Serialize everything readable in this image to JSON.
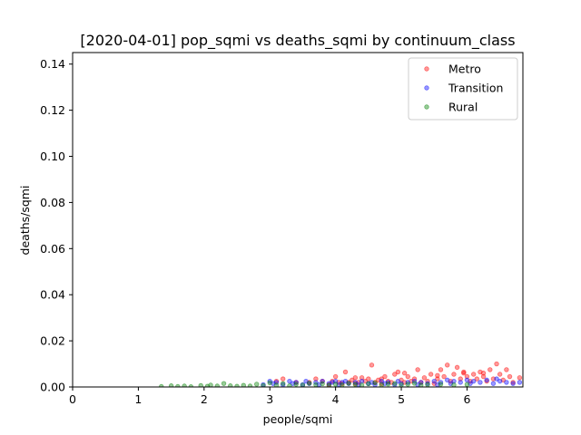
{
  "chart_data": {
    "type": "scatter",
    "title": "[2020-04-01] pop_sqmi vs deaths_sqmi by continuum_class",
    "xlabel": "people/sqmi",
    "ylabel": "deaths/sqmi",
    "xlim": [
      0,
      6.85
    ],
    "ylim": [
      0,
      0.145
    ],
    "xticks": [
      "0",
      "1",
      "2",
      "3",
      "4",
      "5",
      "6"
    ],
    "yticks": [
      "0.00",
      "0.02",
      "0.04",
      "0.06",
      "0.08",
      "0.10",
      "0.12",
      "0.14"
    ],
    "grid": false,
    "legend_position": "top-right",
    "series": [
      {
        "name": "Metro",
        "color": "#ff0000",
        "points": [
          [
            3.1,
            0.0025
          ],
          [
            3.2,
            0.0035
          ],
          [
            3.4,
            0.002
          ],
          [
            3.6,
            0.002
          ],
          [
            3.7,
            0.0035
          ],
          [
            3.8,
            0.0025
          ],
          [
            3.9,
            0.001
          ],
          [
            4.0,
            0.0045
          ],
          [
            4.05,
            0.002
          ],
          [
            4.1,
            0.0015
          ],
          [
            4.15,
            0.0065
          ],
          [
            4.2,
            0.002
          ],
          [
            4.25,
            0.003
          ],
          [
            4.3,
            0.0015
          ],
          [
            4.35,
            0.002
          ],
          [
            4.4,
            0.004
          ],
          [
            4.45,
            0.0025
          ],
          [
            4.5,
            0.0035
          ],
          [
            4.55,
            0.0095
          ],
          [
            4.6,
            0.002
          ],
          [
            4.65,
            0.003
          ],
          [
            4.7,
            0.0015
          ],
          [
            4.75,
            0.0045
          ],
          [
            4.8,
            0.0025
          ],
          [
            4.85,
            0.002
          ],
          [
            4.9,
            0.0055
          ],
          [
            4.95,
            0.0065
          ],
          [
            5.0,
            0.003
          ],
          [
            5.05,
            0.002
          ],
          [
            5.1,
            0.0045
          ],
          [
            5.15,
            0.0025
          ],
          [
            5.2,
            0.0035
          ],
          [
            5.25,
            0.0075
          ],
          [
            5.3,
            0.002
          ],
          [
            5.35,
            0.004
          ],
          [
            5.4,
            0.0025
          ],
          [
            5.45,
            0.0055
          ],
          [
            5.5,
            0.0015
          ],
          [
            5.55,
            0.0035
          ],
          [
            5.6,
            0.0075
          ],
          [
            5.65,
            0.0045
          ],
          [
            5.7,
            0.0095
          ],
          [
            5.75,
            0.0025
          ],
          [
            5.8,
            0.0055
          ],
          [
            5.85,
            0.0085
          ],
          [
            5.9,
            0.0035
          ],
          [
            5.95,
            0.0065
          ],
          [
            6.0,
            0.0045
          ],
          [
            6.05,
            0.0025
          ],
          [
            6.1,
            0.0055
          ],
          [
            6.15,
            0.0035
          ],
          [
            6.2,
            0.0065
          ],
          [
            6.25,
            0.0045
          ],
          [
            6.3,
            0.0025
          ],
          [
            6.35,
            0.0075
          ],
          [
            6.4,
            0.0035
          ],
          [
            6.45,
            0.01
          ],
          [
            6.5,
            0.0055
          ],
          [
            6.55,
            0.003
          ],
          [
            6.6,
            0.0075
          ],
          [
            6.65,
            0.0045
          ],
          [
            6.7,
            0.002
          ],
          [
            6.8,
            0.004
          ],
          [
            4.3,
            0.004
          ],
          [
            5.05,
            0.006
          ],
          [
            5.55,
            0.005
          ],
          [
            5.95,
            0.006
          ],
          [
            6.25,
            0.006
          ],
          [
            3.95,
            0.0025
          ],
          [
            4.7,
            0.0035
          ]
        ]
      },
      {
        "name": "Transition",
        "color": "#0000ff",
        "points": [
          [
            2.9,
            0.001
          ],
          [
            3.0,
            0.0025
          ],
          [
            3.05,
            0.0015
          ],
          [
            3.1,
            0.002
          ],
          [
            3.2,
            0.001
          ],
          [
            3.3,
            0.0025
          ],
          [
            3.35,
            0.0015
          ],
          [
            3.4,
            0.002
          ],
          [
            3.5,
            0.001
          ],
          [
            3.55,
            0.0025
          ],
          [
            3.6,
            0.0015
          ],
          [
            3.7,
            0.002
          ],
          [
            3.75,
            0.001
          ],
          [
            3.8,
            0.0025
          ],
          [
            3.9,
            0.0015
          ],
          [
            3.95,
            0.002
          ],
          [
            4.0,
            0.0025
          ],
          [
            4.05,
            0.001
          ],
          [
            4.1,
            0.002
          ],
          [
            4.15,
            0.0025
          ],
          [
            4.2,
            0.0015
          ],
          [
            4.3,
            0.002
          ],
          [
            4.35,
            0.001
          ],
          [
            4.4,
            0.0025
          ],
          [
            4.5,
            0.0015
          ],
          [
            4.55,
            0.002
          ],
          [
            4.6,
            0.001
          ],
          [
            4.7,
            0.0025
          ],
          [
            4.75,
            0.0015
          ],
          [
            4.8,
            0.002
          ],
          [
            4.9,
            0.001
          ],
          [
            4.95,
            0.0025
          ],
          [
            5.0,
            0.0015
          ],
          [
            5.1,
            0.002
          ],
          [
            5.2,
            0.0025
          ],
          [
            5.25,
            0.001
          ],
          [
            5.3,
            0.002
          ],
          [
            5.4,
            0.0015
          ],
          [
            5.5,
            0.0025
          ],
          [
            5.55,
            0.001
          ],
          [
            5.6,
            0.002
          ],
          [
            5.7,
            0.003
          ],
          [
            5.75,
            0.0015
          ],
          [
            5.8,
            0.0025
          ],
          [
            5.9,
            0.002
          ],
          [
            6.0,
            0.003
          ],
          [
            6.05,
            0.0015
          ],
          [
            6.1,
            0.0025
          ],
          [
            6.2,
            0.002
          ],
          [
            6.3,
            0.003
          ],
          [
            6.4,
            0.0015
          ],
          [
            6.45,
            0.0035
          ],
          [
            6.5,
            0.0025
          ],
          [
            6.6,
            0.002
          ],
          [
            6.7,
            0.0015
          ],
          [
            6.8,
            0.002
          ]
        ]
      },
      {
        "name": "Rural",
        "color": "#008000",
        "points": [
          [
            1.35,
            0.0002
          ],
          [
            1.5,
            0.0005
          ],
          [
            1.6,
            0.0002
          ],
          [
            1.7,
            0.0004
          ],
          [
            1.8,
            0.0001
          ],
          [
            1.95,
            0.0006
          ],
          [
            2.05,
            0.0003
          ],
          [
            2.1,
            0.0008
          ],
          [
            2.2,
            0.0004
          ],
          [
            2.3,
            0.0015
          ],
          [
            2.4,
            0.0005
          ],
          [
            2.5,
            0.0003
          ],
          [
            2.6,
            0.0007
          ],
          [
            2.7,
            0.0004
          ],
          [
            2.8,
            0.0012
          ],
          [
            2.9,
            0.0006
          ],
          [
            3.0,
            0.0018
          ],
          [
            3.1,
            0.0008
          ],
          [
            3.2,
            0.0015
          ],
          [
            3.3,
            0.0005
          ],
          [
            3.4,
            0.0012
          ],
          [
            3.5,
            0.0008
          ],
          [
            3.6,
            0.0016
          ],
          [
            3.7,
            0.001
          ],
          [
            3.8,
            0.0014
          ],
          [
            3.9,
            0.0007
          ],
          [
            4.0,
            0.0012
          ],
          [
            4.1,
            0.0009
          ],
          [
            4.2,
            0.0016
          ],
          [
            4.3,
            0.0011
          ],
          [
            4.4,
            0.0008
          ],
          [
            4.5,
            0.0014
          ],
          [
            4.6,
            0.0018
          ],
          [
            4.7,
            0.0009
          ],
          [
            4.8,
            0.0013
          ],
          [
            4.9,
            0.0015
          ],
          [
            5.0,
            0.0009
          ],
          [
            5.1,
            0.0012
          ],
          [
            5.2,
            0.0016
          ],
          [
            5.3,
            0.0008
          ],
          [
            5.4,
            0.001
          ],
          [
            5.6,
            0.0012
          ],
          [
            5.8,
            0.0009
          ],
          [
            6.0,
            0.0011
          ]
        ]
      }
    ]
  }
}
